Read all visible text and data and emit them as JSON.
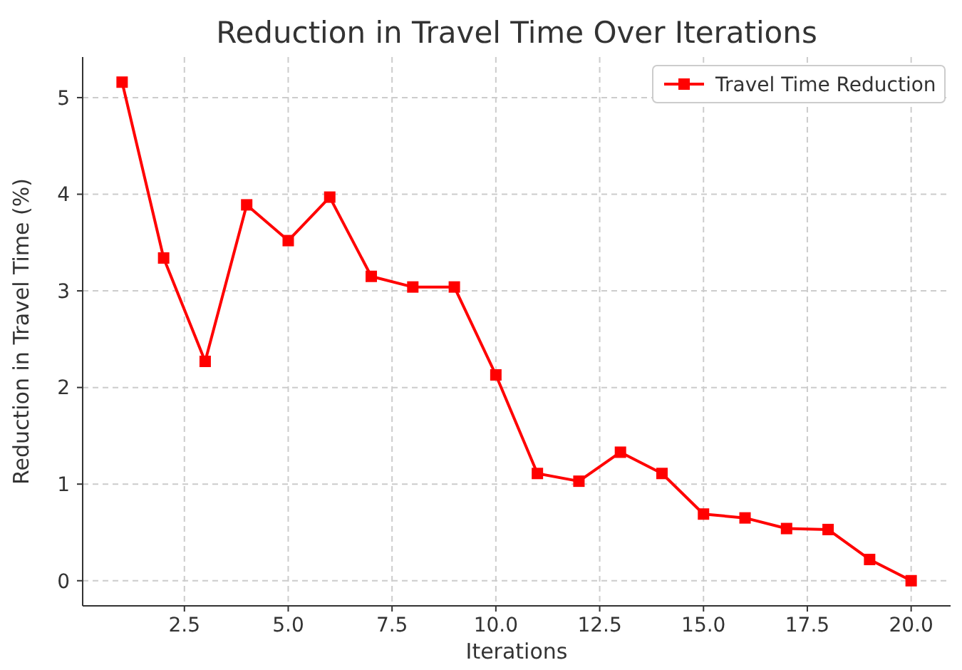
{
  "chart_data": {
    "type": "line",
    "title": "Reduction in Travel Time Over Iterations",
    "xlabel": "Iterations",
    "ylabel": "Reduction in Travel Time (%)",
    "x": [
      1,
      2,
      3,
      4,
      5,
      6,
      7,
      8,
      9,
      10,
      11,
      12,
      13,
      14,
      15,
      16,
      17,
      18,
      19,
      20
    ],
    "series": [
      {
        "name": "Travel Time Reduction",
        "color": "#ff0000",
        "values": [
          5.16,
          3.34,
          2.27,
          3.89,
          3.52,
          3.97,
          3.15,
          3.04,
          3.04,
          2.13,
          1.11,
          1.03,
          1.33,
          1.11,
          0.69,
          0.65,
          0.54,
          0.53,
          0.22,
          0.0
        ]
      }
    ],
    "xlim": [
      0.05,
      20.95
    ],
    "ylim": [
      -0.26,
      5.42
    ],
    "xticks": [
      {
        "value": 2.5,
        "label": "2.5"
      },
      {
        "value": 5,
        "label": "5.0"
      },
      {
        "value": 7.5,
        "label": "7.5"
      },
      {
        "value": 10,
        "label": "10.0"
      },
      {
        "value": 12.5,
        "label": "12.5"
      },
      {
        "value": 15,
        "label": "15.0"
      },
      {
        "value": 17.5,
        "label": "17.5"
      },
      {
        "value": 20,
        "label": "20.0"
      }
    ],
    "yticks": [
      0,
      1,
      2,
      3,
      4,
      5
    ],
    "grid": true,
    "legend": "top right",
    "marker": "square",
    "line_style": "solid"
  }
}
